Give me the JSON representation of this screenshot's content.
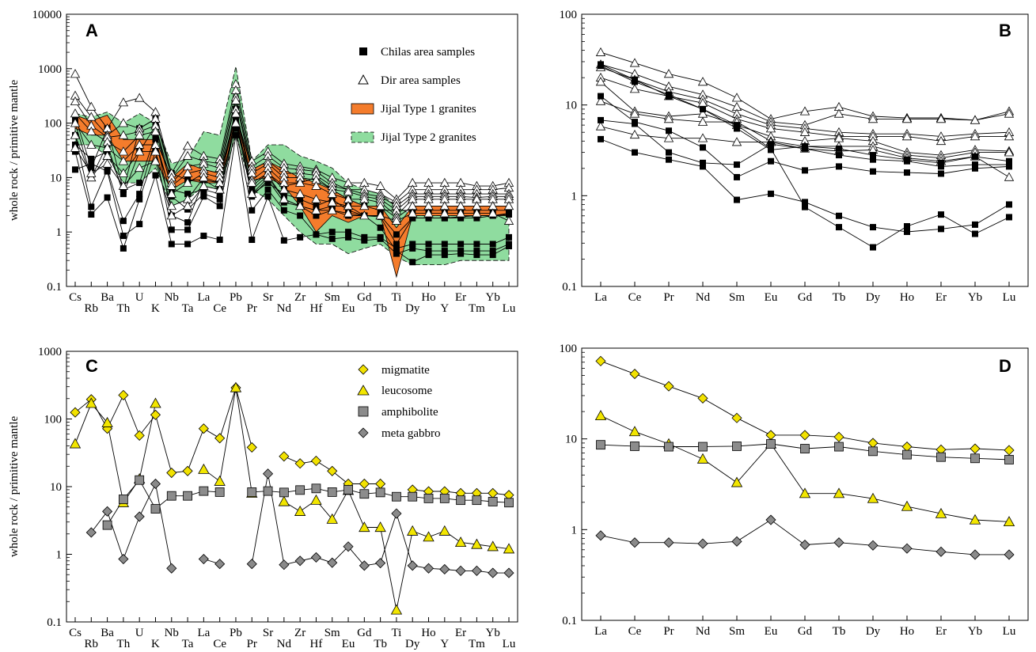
{
  "figure": {
    "ylabel": "whole rock / primitive mantle"
  },
  "colors": {
    "type1_fill": "#f47c2c",
    "type2_fill": "#8fdc9f",
    "diamond_yellow": "#f2e200",
    "triangle_yellow": "#f2e600",
    "square_gray": "#8c8c8c",
    "diamond_gray": "#8a8a8a",
    "line": "#000000"
  },
  "chart_data": [
    {
      "panel": "A",
      "type": "line",
      "scale": "log",
      "ylim": [
        0.1,
        10000
      ],
      "yticks": [
        "0.1",
        "1",
        "10",
        "100",
        "1000",
        "10000"
      ],
      "ylabel": "whole rock / primitive mantle",
      "elements": [
        "Cs",
        "Rb",
        "Ba",
        "Th",
        "U",
        "K",
        "Nb",
        "Ta",
        "La",
        "Ce",
        "Pb",
        "Pr",
        "Sr",
        "Nd",
        "Zr",
        "Hf",
        "Sm",
        "Eu",
        "Gd",
        "Tb",
        "Ti",
        "Dy",
        "Ho",
        "Y",
        "Er",
        "Tm",
        "Yb",
        "Lu"
      ],
      "legend": [
        "Chilas area samples",
        "Dir area samples",
        "Jijal Type 1 granites",
        "Jijal Type 2 granites"
      ],
      "type1_band": {
        "upper": [
          140,
          110,
          140,
          50,
          50,
          50,
          10,
          18,
          14,
          12,
          150,
          14,
          20,
          14,
          10,
          8,
          6,
          4,
          3,
          3,
          1.2,
          3,
          3,
          3,
          3,
          3,
          3,
          3
        ],
        "lower": [
          80,
          60,
          60,
          20,
          20,
          20,
          6,
          9,
          8,
          8,
          90,
          9,
          10,
          7,
          3,
          1,
          2,
          1.5,
          2,
          2,
          0.15,
          2,
          2,
          2,
          2,
          2,
          2,
          2
        ]
      },
      "type2_band": {
        "upper": [
          150,
          130,
          160,
          100,
          150,
          100,
          18,
          22,
          70,
          60,
          1100,
          20,
          40,
          40,
          25,
          20,
          15,
          8,
          6,
          5,
          3,
          2,
          2,
          2,
          2,
          2,
          2,
          2
        ],
        "lower": [
          40,
          40,
          25,
          8,
          8,
          15,
          3,
          4,
          7,
          6,
          60,
          6,
          4,
          2,
          1,
          0.6,
          0.6,
          0.4,
          0.5,
          0.6,
          0.35,
          0.25,
          0.25,
          0.25,
          0.3,
          0.3,
          0.3,
          0.3
        ]
      },
      "series": [
        {
          "group": "Chilas",
          "values": [
            130,
            15,
            80,
            6,
            80,
            120,
            12,
            9,
            9,
            8,
            180,
            7,
            12,
            7,
            8,
            10,
            6,
            4,
            3,
            2.5,
            2.5,
            2.5,
            2.5,
            2.5,
            2.5,
            2.5,
            2.5,
            2.5
          ]
        },
        {
          "group": "Chilas",
          "values": [
            100,
            10,
            40,
            5,
            30,
            90,
            6,
            5,
            6,
            5,
            140,
            5,
            8,
            5,
            4,
            3,
            4,
            2.5,
            2,
            2,
            0.9,
            1.8,
            1.8,
            1.8,
            1.9,
            2,
            2,
            2.1
          ]
        },
        {
          "group": "Chilas",
          "values": [
            60,
            2.9,
            14,
            1.6,
            5,
            50,
            4.5,
            2.6,
            5,
            4,
            110,
            4.5,
            9,
            3.5,
            3,
            2,
            2.5,
            2,
            2,
            1.9,
            0.6,
            1.8,
            1.8,
            1.8,
            1.8,
            1.8,
            2,
            2.2
          ]
        },
        {
          "group": "Chilas",
          "values": [
            30,
            2.1,
            4.3,
            0.5,
            4,
            30,
            1.1,
            1.1,
            4.5,
            3,
            80,
            2.5,
            6,
            2.5,
            2,
            0.9,
            1,
            1,
            0.8,
            0.8,
            0.5,
            0.6,
            0.6,
            0.6,
            0.6,
            0.6,
            0.6,
            0.8
          ]
        },
        {
          "group": "Chilas",
          "values": [
            14,
            18,
            13,
            0.85,
            1.4,
            11,
            0.6,
            0.6,
            0.85,
            0.72,
            60,
            0.72,
            4.5,
            0.7,
            0.8,
            0.9,
            0.75,
            0.8,
            0.7,
            0.75,
            0.4,
            0.5,
            0.45,
            0.45,
            0.45,
            0.45,
            0.45,
            0.6
          ]
        },
        {
          "group": "Chilas",
          "values": [
            40,
            22,
            30,
            6,
            8,
            60,
            2,
            1.5,
            9,
            6,
            120,
            6,
            11,
            4,
            3,
            2.5,
            3,
            3,
            2,
            1.2,
            0.45,
            0.28,
            0.38,
            0.38,
            0.4,
            0.38,
            0.38,
            0.55
          ]
        },
        {
          "group": "Dir",
          "values": [
            800,
            200,
            80,
            240,
            290,
            160,
            12,
            38,
            25,
            22,
            520,
            20,
            30,
            18,
            16,
            14,
            10,
            8,
            8,
            7,
            4,
            8,
            8,
            8,
            8,
            7,
            7,
            8
          ]
        },
        {
          "group": "Dir",
          "values": [
            320,
            130,
            60,
            100,
            80,
            120,
            10,
            25,
            20,
            18,
            400,
            16,
            25,
            15,
            14,
            13,
            8,
            6,
            6,
            5,
            3.5,
            6,
            6,
            6,
            6,
            6,
            6,
            6.5
          ]
        },
        {
          "group": "Dir",
          "values": [
            250,
            90,
            55,
            60,
            70,
            90,
            8,
            16,
            18,
            15,
            300,
            14,
            20,
            12,
            12,
            11,
            7,
            6,
            5,
            4.5,
            3,
            5,
            5,
            5,
            5,
            5,
            5,
            5
          ]
        },
        {
          "group": "Dir",
          "values": [
            150,
            70,
            45,
            30,
            60,
            70,
            7,
            12,
            14,
            12,
            260,
            12,
            18,
            10,
            10,
            9,
            6,
            5.5,
            4.5,
            4,
            2.5,
            4.5,
            4.5,
            4.5,
            4.5,
            4.3,
            4.5,
            4.5
          ]
        },
        {
          "group": "Dir",
          "values": [
            100,
            40,
            35,
            20,
            40,
            40,
            5,
            8,
            12,
            10,
            180,
            9,
            15,
            8,
            8,
            7,
            5,
            4,
            4,
            3.5,
            2,
            4,
            4,
            4,
            4,
            4,
            4,
            4
          ]
        },
        {
          "group": "Dir",
          "values": [
            60,
            10,
            25,
            12,
            30,
            30,
            3,
            4,
            10,
            8,
            150,
            8,
            12,
            6,
            5,
            4,
            3.5,
            3,
            3,
            3,
            1.8,
            3,
            3,
            3,
            3,
            3,
            3,
            3
          ]
        },
        {
          "group": "Dir",
          "values": [
            35,
            12,
            18,
            7,
            15,
            20,
            2,
            3,
            7,
            6,
            100,
            5,
            10,
            4,
            3,
            2.5,
            2.5,
            2.2,
            2,
            2,
            1.6,
            2.2,
            2.2,
            2.2,
            2.2,
            2.2,
            2.2,
            1.6
          ]
        }
      ]
    },
    {
      "panel": "B",
      "type": "line",
      "scale": "log",
      "ylim": [
        0.1,
        100
      ],
      "yticks": [
        "0.1",
        "1",
        "10",
        "100"
      ],
      "elements": [
        "La",
        "Ce",
        "Pr",
        "Nd",
        "Sm",
        "Eu",
        "Gd",
        "Tb",
        "Dy",
        "Ho",
        "Er",
        "Yb",
        "Lu"
      ],
      "series": [
        {
          "group": "Dir",
          "values": [
            38,
            29,
            22,
            18,
            12,
            7,
            8.5,
            9.5,
            7.5,
            7.2,
            7.2,
            6.8,
            8.5
          ]
        },
        {
          "group": "Dir",
          "values": [
            28,
            22,
            16,
            13,
            9.5,
            6.5,
            6,
            8,
            7,
            7,
            7,
            6.8,
            8
          ]
        },
        {
          "group": "Dir",
          "values": [
            26,
            19,
            14,
            11.5,
            8,
            6,
            5.5,
            5,
            4.8,
            4.8,
            4.5,
            4.8,
            5
          ]
        },
        {
          "group": "Dir",
          "values": [
            20,
            15,
            12.5,
            10.5,
            7,
            5.5,
            5,
            4.5,
            4.5,
            4.5,
            4,
            4.5,
            4.5
          ]
        },
        {
          "group": "Dir",
          "values": [
            18,
            8.5,
            7.5,
            8,
            6,
            4.5,
            4,
            4.3,
            4,
            3,
            2.8,
            3.2,
            3.1
          ]
        },
        {
          "group": "Dir",
          "values": [
            11,
            8,
            7,
            6.5,
            6.5,
            4,
            3.5,
            3.5,
            3.5,
            2.8,
            2.6,
            3,
            3
          ]
        },
        {
          "group": "Dir",
          "values": [
            5.8,
            4.7,
            4.3,
            4.3,
            3.9,
            3.9,
            3.3,
            3.1,
            3.2,
            2.6,
            2.4,
            2.7,
            1.6
          ]
        },
        {
          "group": "Chilas",
          "values": [
            28,
            19,
            12.5,
            9,
            5.5,
            3.2,
            3.5,
            3.3,
            2.8,
            2.5,
            2.3,
            2.7,
            2.4
          ]
        },
        {
          "group": "Chilas",
          "values": [
            12.5,
            6.5,
            5.2,
            3.4,
            1.6,
            2.4,
            1.9,
            2.1,
            1.85,
            1.8,
            1.75,
            2,
            2.1
          ]
        },
        {
          "group": "Chilas",
          "values": [
            6.8,
            6.2,
            3,
            2.3,
            2.2,
            3.7,
            3.3,
            2.8,
            2.5,
            2.4,
            2.1,
            2.2,
            2.2
          ]
        },
        {
          "group": "Chilas",
          "values": [
            4.2,
            3,
            2.5,
            2.1,
            0.9,
            1.05,
            0.85,
            0.6,
            0.45,
            0.4,
            0.43,
            0.48,
            0.8
          ]
        },
        {
          "group": "Chilas",
          "values": [
            27,
            18,
            13,
            9,
            6,
            3.3,
            0.75,
            0.45,
            0.27,
            0.46,
            0.62,
            0.38,
            0.58
          ]
        }
      ]
    },
    {
      "panel": "C",
      "type": "line",
      "scale": "log",
      "ylim": [
        0.1,
        1000
      ],
      "yticks": [
        "0.1",
        "1",
        "10",
        "100",
        "1000"
      ],
      "ylabel": "whole rock / primitive mantle",
      "elements": [
        "Cs",
        "Rb",
        "Ba",
        "Th",
        "U",
        "K",
        "Nb",
        "Ta",
        "La",
        "Ce",
        "Pb",
        "Pr",
        "Sr",
        "Nd",
        "Zr",
        "Hf",
        "Sm",
        "Eu",
        "Gd",
        "Tb",
        "Ti",
        "Dy",
        "Ho",
        "Y",
        "Er",
        "Tm",
        "Yb",
        "Lu"
      ],
      "legend": [
        "migmatite",
        "leucosome",
        "amphibolite",
        "meta gabbro"
      ],
      "series": [
        {
          "name": "migmatite",
          "values": [
            125,
            195,
            72,
            225,
            57,
            115,
            16,
            17,
            72,
            52,
            290,
            38,
            null,
            28,
            22,
            24,
            17,
            11,
            11,
            11,
            null,
            9,
            8.5,
            8.5,
            8,
            8,
            8,
            7.5
          ]
        },
        {
          "name": "leucosome",
          "values": [
            43,
            170,
            88,
            5.8,
            13,
            170,
            null,
            null,
            18,
            12,
            290,
            8,
            null,
            6,
            4.3,
            6.3,
            3.3,
            8.8,
            2.5,
            2.5,
            0.15,
            2.2,
            1.8,
            2.2,
            1.5,
            1.4,
            1.3,
            1.2
          ]
        },
        {
          "name": "amphibolite",
          "values": [
            null,
            null,
            2.7,
            6.5,
            12.5,
            4.7,
            7.3,
            7.3,
            8.6,
            8.3,
            null,
            8.3,
            8.6,
            8.2,
            8.9,
            9.4,
            8.3,
            9,
            7.8,
            8.2,
            7.1,
            7.1,
            6.7,
            6.7,
            6.3,
            6.3,
            6,
            5.8
          ]
        },
        {
          "name": "meta gabbro",
          "values": [
            null,
            2.1,
            4.3,
            0.85,
            3.6,
            11,
            0.62,
            null,
            0.85,
            0.72,
            null,
            0.72,
            15.5,
            0.7,
            0.8,
            0.9,
            0.75,
            1.3,
            0.68,
            0.74,
            4,
            0.68,
            0.62,
            0.6,
            0.57,
            0.57,
            0.53,
            0.53
          ]
        }
      ]
    },
    {
      "panel": "D",
      "type": "line",
      "scale": "log",
      "ylim": [
        0.1,
        100
      ],
      "yticks": [
        "0.1",
        "1",
        "10",
        "100"
      ],
      "elements": [
        "La",
        "Ce",
        "Pr",
        "Nd",
        "Sm",
        "Eu",
        "Gd",
        "Tb",
        "Dy",
        "Ho",
        "Er",
        "Yb",
        "Lu"
      ],
      "series": [
        {
          "name": "migmatite",
          "values": [
            72,
            52,
            38,
            28,
            17,
            11,
            11,
            10.5,
            9,
            8.2,
            7.6,
            7.8,
            7.5
          ]
        },
        {
          "name": "leucosome",
          "values": [
            18,
            12,
            8.8,
            6,
            3.3,
            8.8,
            2.5,
            2.5,
            2.2,
            1.8,
            1.5,
            1.28,
            1.22
          ]
        },
        {
          "name": "amphibolite",
          "values": [
            8.6,
            8.3,
            8.2,
            8.2,
            8.3,
            8.8,
            7.8,
            8.2,
            7.3,
            6.7,
            6.3,
            6.1,
            5.9
          ]
        },
        {
          "name": "meta gabbro",
          "values": [
            0.86,
            0.72,
            0.72,
            0.7,
            0.74,
            1.28,
            0.68,
            0.72,
            0.67,
            0.62,
            0.57,
            0.53,
            0.53
          ]
        }
      ]
    }
  ]
}
